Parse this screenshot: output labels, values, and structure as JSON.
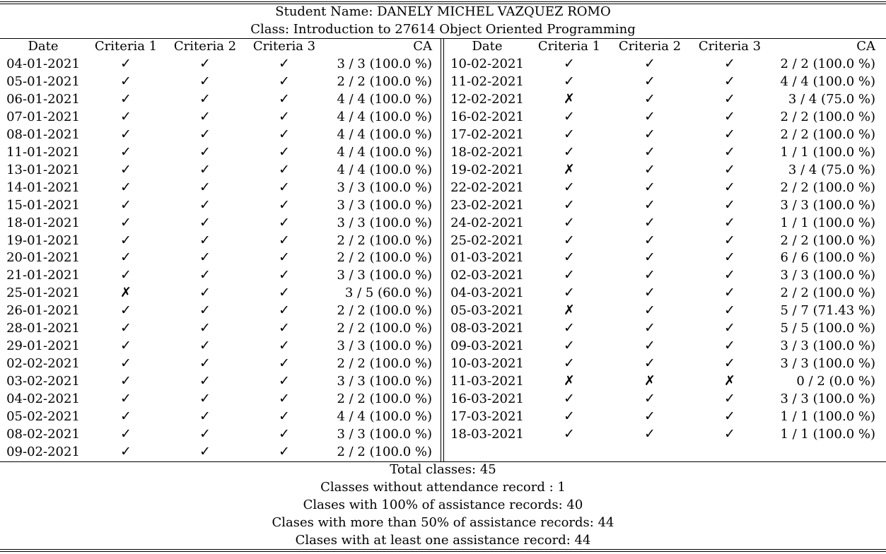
{
  "student_label": "Student Name: DANELY MICHEL VAZQUEZ ROMO",
  "class_label": "Class: Introduction to 27614 Object Oriented Programming",
  "columns": [
    "Date",
    "Criteria 1",
    "Criteria 2",
    "Criteria 3",
    "CA"
  ],
  "marks": {
    "yes": "✓",
    "no": "✗"
  },
  "left_rows": [
    [
      "04-01-2021",
      "yes",
      "yes",
      "yes",
      "3 / 3 (100.0 %)"
    ],
    [
      "05-01-2021",
      "yes",
      "yes",
      "yes",
      "2 / 2 (100.0 %)"
    ],
    [
      "06-01-2021",
      "yes",
      "yes",
      "yes",
      "4 / 4 (100.0 %)"
    ],
    [
      "07-01-2021",
      "yes",
      "yes",
      "yes",
      "4 / 4 (100.0 %)"
    ],
    [
      "08-01-2021",
      "yes",
      "yes",
      "yes",
      "4 / 4 (100.0 %)"
    ],
    [
      "11-01-2021",
      "yes",
      "yes",
      "yes",
      "4 / 4 (100.0 %)"
    ],
    [
      "13-01-2021",
      "yes",
      "yes",
      "yes",
      "4 / 4 (100.0 %)"
    ],
    [
      "14-01-2021",
      "yes",
      "yes",
      "yes",
      "3 / 3 (100.0 %)"
    ],
    [
      "15-01-2021",
      "yes",
      "yes",
      "yes",
      "3 / 3 (100.0 %)"
    ],
    [
      "18-01-2021",
      "yes",
      "yes",
      "yes",
      "3 / 3 (100.0 %)"
    ],
    [
      "19-01-2021",
      "yes",
      "yes",
      "yes",
      "2 / 2 (100.0 %)"
    ],
    [
      "20-01-2021",
      "yes",
      "yes",
      "yes",
      "2 / 2 (100.0 %)"
    ],
    [
      "21-01-2021",
      "yes",
      "yes",
      "yes",
      "3 / 3 (100.0 %)"
    ],
    [
      "25-01-2021",
      "no",
      "yes",
      "yes",
      "3 / 5 (60.0 %)"
    ],
    [
      "26-01-2021",
      "yes",
      "yes",
      "yes",
      "2 / 2 (100.0 %)"
    ],
    [
      "28-01-2021",
      "yes",
      "yes",
      "yes",
      "2 / 2 (100.0 %)"
    ],
    [
      "29-01-2021",
      "yes",
      "yes",
      "yes",
      "3 / 3 (100.0 %)"
    ],
    [
      "02-02-2021",
      "yes",
      "yes",
      "yes",
      "2 / 2 (100.0 %)"
    ],
    [
      "03-02-2021",
      "yes",
      "yes",
      "yes",
      "3 / 3 (100.0 %)"
    ],
    [
      "04-02-2021",
      "yes",
      "yes",
      "yes",
      "2 / 2 (100.0 %)"
    ],
    [
      "05-02-2021",
      "yes",
      "yes",
      "yes",
      "4 / 4 (100.0 %)"
    ],
    [
      "08-02-2021",
      "yes",
      "yes",
      "yes",
      "3 / 3 (100.0 %)"
    ],
    [
      "09-02-2021",
      "yes",
      "yes",
      "yes",
      "2 / 2 (100.0 %)"
    ]
  ],
  "right_rows": [
    [
      "10-02-2021",
      "yes",
      "yes",
      "yes",
      "2 / 2 (100.0 %)"
    ],
    [
      "11-02-2021",
      "yes",
      "yes",
      "yes",
      "4 / 4 (100.0 %)"
    ],
    [
      "12-02-2021",
      "no",
      "yes",
      "yes",
      "3 / 4 (75.0 %)"
    ],
    [
      "16-02-2021",
      "yes",
      "yes",
      "yes",
      "2 / 2 (100.0 %)"
    ],
    [
      "17-02-2021",
      "yes",
      "yes",
      "yes",
      "2 / 2 (100.0 %)"
    ],
    [
      "18-02-2021",
      "yes",
      "yes",
      "yes",
      "1 / 1 (100.0 %)"
    ],
    [
      "19-02-2021",
      "no",
      "yes",
      "yes",
      "3 / 4 (75.0 %)"
    ],
    [
      "22-02-2021",
      "yes",
      "yes",
      "yes",
      "2 / 2 (100.0 %)"
    ],
    [
      "23-02-2021",
      "yes",
      "yes",
      "yes",
      "3 / 3 (100.0 %)"
    ],
    [
      "24-02-2021",
      "yes",
      "yes",
      "yes",
      "1 / 1 (100.0 %)"
    ],
    [
      "25-02-2021",
      "yes",
      "yes",
      "yes",
      "2 / 2 (100.0 %)"
    ],
    [
      "01-03-2021",
      "yes",
      "yes",
      "yes",
      "6 / 6 (100.0 %)"
    ],
    [
      "02-03-2021",
      "yes",
      "yes",
      "yes",
      "3 / 3 (100.0 %)"
    ],
    [
      "04-03-2021",
      "yes",
      "yes",
      "yes",
      "2 / 2 (100.0 %)"
    ],
    [
      "05-03-2021",
      "no",
      "yes",
      "yes",
      "5 / 7 (71.43 %)"
    ],
    [
      "08-03-2021",
      "yes",
      "yes",
      "yes",
      "5 / 5 (100.0 %)"
    ],
    [
      "09-03-2021",
      "yes",
      "yes",
      "yes",
      "3 / 3 (100.0 %)"
    ],
    [
      "10-03-2021",
      "yes",
      "yes",
      "yes",
      "3 / 3 (100.0 %)"
    ],
    [
      "11-03-2021",
      "no",
      "no",
      "no",
      "0 / 2 (0.0 %)"
    ],
    [
      "16-03-2021",
      "yes",
      "yes",
      "yes",
      "3 / 3 (100.0 %)"
    ],
    [
      "17-03-2021",
      "yes",
      "yes",
      "yes",
      "1 / 1 (100.0 %)"
    ],
    [
      "18-03-2021",
      "yes",
      "yes",
      "yes",
      "1 / 1 (100.0 %)"
    ]
  ],
  "summary": [
    "Total classes: 45",
    "Classes without attendance record : 1",
    "Clases with 100% of assistance records: 40",
    "Clases with more than 50% of assistance records: 44",
    "Clases with at least one assistance record: 44"
  ]
}
